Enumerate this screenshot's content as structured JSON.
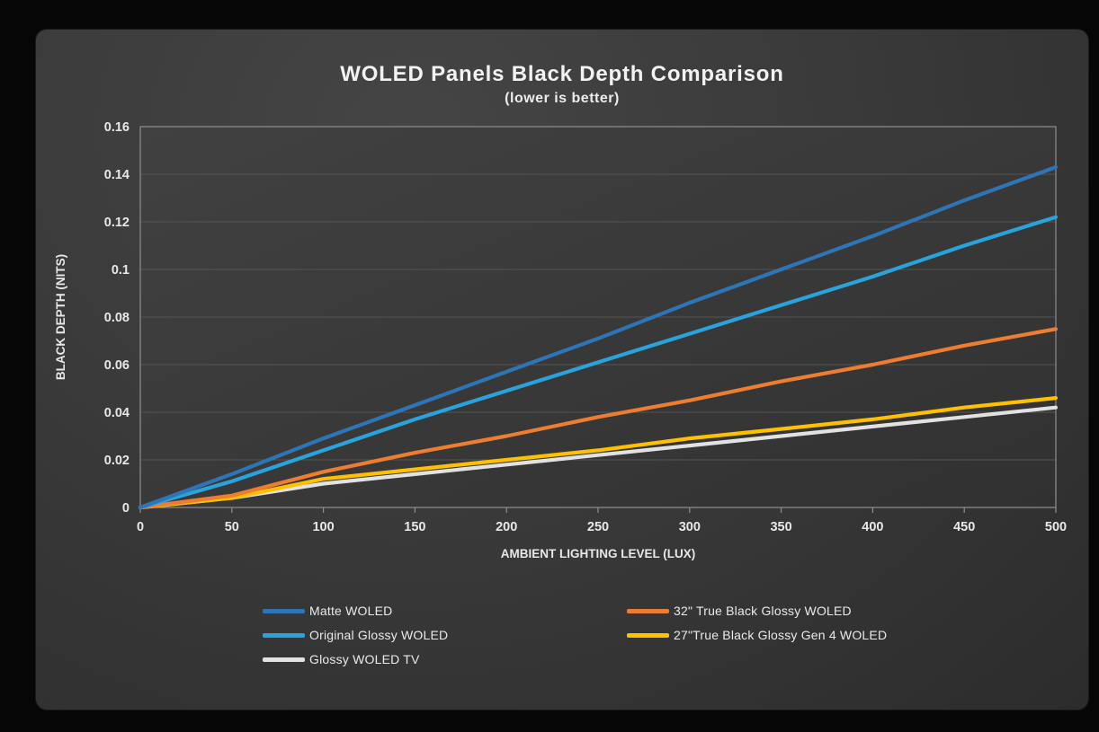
{
  "chart_data": {
    "type": "line",
    "title": "WOLED Panels Black Depth Comparison",
    "subtitle": "(lower is better)",
    "xlabel": "AMBIENT LIGHTING LEVEL (LUX)",
    "ylabel": "BLACK DEPTH (NITS)",
    "xlim": [
      0,
      500
    ],
    "ylim": [
      0,
      0.16
    ],
    "x": [
      0,
      50,
      100,
      150,
      200,
      250,
      300,
      350,
      400,
      450,
      500
    ],
    "x_tick_labels": [
      "0",
      "50",
      "100",
      "150",
      "200",
      "250",
      "300",
      "350",
      "400",
      "450",
      "500"
    ],
    "y_ticks": [
      0,
      0.02,
      0.04,
      0.06,
      0.08,
      0.1,
      0.12,
      0.14,
      0.16
    ],
    "y_tick_labels": [
      "0",
      "0.02",
      "0.04",
      "0.06",
      "0.08",
      "0.1",
      "0.12",
      "0.14",
      "0.16"
    ],
    "grid": "horizontal",
    "legend_position": "bottom",
    "legend_order": [
      0,
      3,
      1,
      4,
      2
    ],
    "series": [
      {
        "name": "Matte WOLED",
        "color": "#2e75b6",
        "values": [
          0,
          0.014,
          0.029,
          0.043,
          0.057,
          0.071,
          0.086,
          0.1,
          0.114,
          0.129,
          0.143
        ]
      },
      {
        "name": "Original Glossy WOLED",
        "color": "#2aa3dd",
        "values": [
          0,
          0.011,
          0.024,
          0.037,
          0.049,
          0.061,
          0.073,
          0.085,
          0.097,
          0.11,
          0.122
        ]
      },
      {
        "name": "Glossy WOLED TV",
        "color": "#e2e2e2",
        "values": [
          0,
          0.004,
          0.01,
          0.014,
          0.018,
          0.022,
          0.026,
          0.03,
          0.034,
          0.038,
          0.042
        ]
      },
      {
        "name": "32\" True Black Glossy WOLED",
        "color": "#ed7d31",
        "values": [
          0,
          0.005,
          0.015,
          0.023,
          0.03,
          0.038,
          0.045,
          0.053,
          0.06,
          0.068,
          0.075
        ]
      },
      {
        "name": "27\"True Black Glossy Gen 4 WOLED",
        "color": "#ffc000",
        "values": [
          0,
          0.004,
          0.012,
          0.016,
          0.02,
          0.024,
          0.029,
          0.033,
          0.037,
          0.042,
          0.046
        ]
      }
    ]
  },
  "colors": {
    "page_background": "#060606",
    "card_background": "#3a3a3a",
    "grid_line": "#545454",
    "plot_border": "#8f8f8f",
    "tick_text": "#e8e8e8",
    "title_text": "#f2f2f2"
  }
}
